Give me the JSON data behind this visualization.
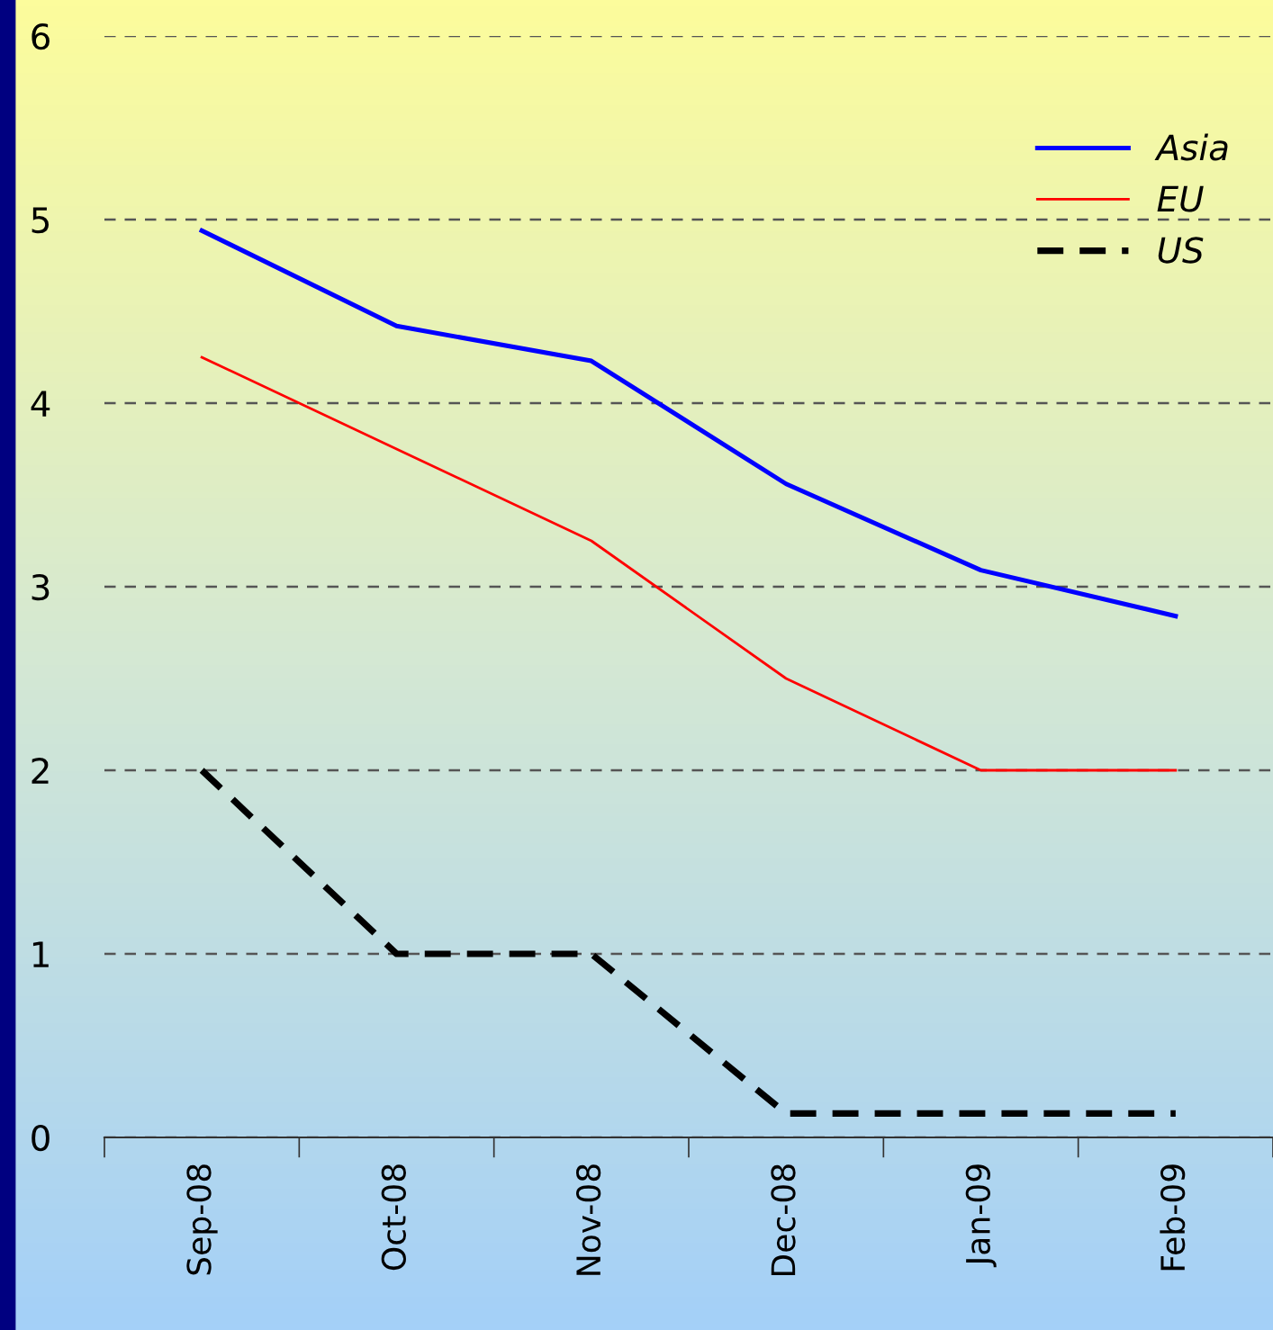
{
  "chart_data": {
    "type": "line",
    "categories": [
      "Sep-08",
      "Oct-08",
      "Nov-08",
      "Dec-08",
      "Jan-09",
      "Feb-09"
    ],
    "series": [
      {
        "name": "Asia",
        "color": "#0000ff",
        "values": [
          4.94,
          4.42,
          4.23,
          3.56,
          3.09,
          2.84
        ],
        "line_style": "solid"
      },
      {
        "name": "EU",
        "color": "#ff0000",
        "values": [
          4.25,
          3.75,
          3.25,
          2.5,
          2.0,
          2.0
        ],
        "line_style": "solid"
      },
      {
        "name": "US",
        "color": "#000000",
        "values": [
          2.0,
          1.0,
          1.0,
          0.13,
          0.13,
          0.13
        ],
        "line_style": "dashed"
      }
    ],
    "ylim": [
      0,
      6
    ],
    "yticks": [
      0,
      1,
      2,
      3,
      4,
      5,
      6
    ],
    "grid": "y",
    "legend": "top right",
    "marker": "none"
  }
}
